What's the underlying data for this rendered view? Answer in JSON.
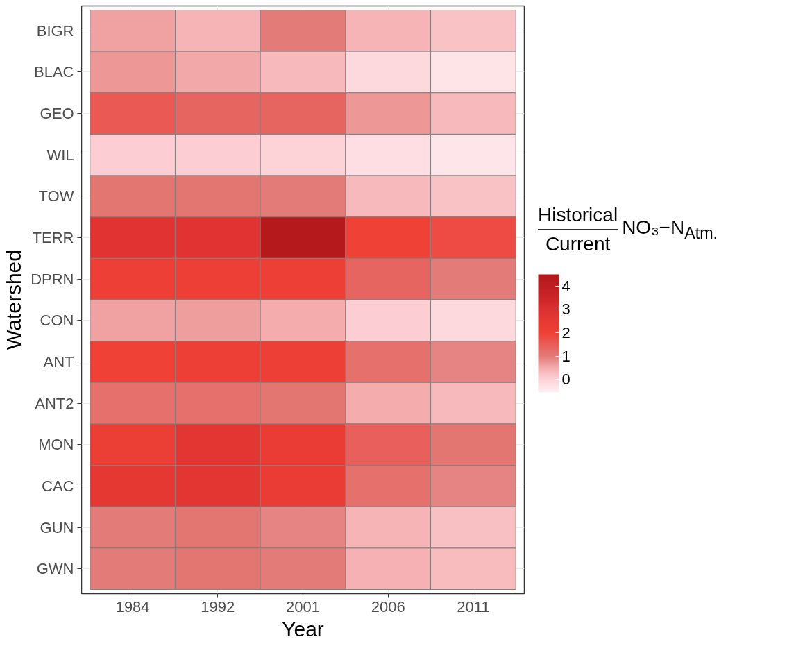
{
  "chart_data": {
    "type": "heatmap",
    "xlabel": "Year",
    "ylabel": "Watershed",
    "clabel": "Historical/Current NO₃−N$_{Atm.}$",
    "categories": [
      "1984",
      "1992",
      "2001",
      "2006",
      "2011"
    ],
    "y_categories": [
      "BIGR",
      "BLAC",
      "GEO",
      "WIL",
      "TOW",
      "TERR",
      "DPRN",
      "CON",
      "ANT",
      "ANT2",
      "MON",
      "CAC",
      "GUN",
      "GWN"
    ],
    "cells": [
      [
        0.6,
        0.4,
        1.0,
        0.4,
        0.2
      ],
      [
        0.7,
        0.55,
        0.35,
        -0.1,
        -0.3
      ],
      [
        1.6,
        1.4,
        1.4,
        0.7,
        0.35
      ],
      [
        0.05,
        0.05,
        0.0,
        -0.2,
        -0.35
      ],
      [
        1.1,
        1.1,
        1.0,
        0.35,
        0.2
      ],
      [
        2.8,
        2.8,
        4.4,
        2.0,
        1.8
      ],
      [
        2.1,
        2.1,
        2.1,
        1.4,
        1.0
      ],
      [
        0.6,
        0.65,
        0.5,
        0.05,
        -0.1
      ],
      [
        2.0,
        2.1,
        2.1,
        1.2,
        0.9
      ],
      [
        1.2,
        1.2,
        1.1,
        0.5,
        0.35
      ],
      [
        2.2,
        2.7,
        2.3,
        1.5,
        1.1
      ],
      [
        2.6,
        2.7,
        2.3,
        1.2,
        0.9
      ],
      [
        1.0,
        1.1,
        0.9,
        0.4,
        0.25
      ],
      [
        1.0,
        1.1,
        1.0,
        0.45,
        0.3
      ]
    ],
    "colors": [
      "#fff0f3",
      "#fdd5da",
      "#f5b0b1",
      "#e37d7a",
      "#e8605c",
      "#ef4136",
      "#e73a33",
      "#dd3131",
      "#cc2628",
      "#bf1f22",
      "#b2181b"
    ],
    "clim": [
      -0.55,
      4.5
    ],
    "cticks": [
      0,
      1,
      2,
      3,
      4
    ],
    "grid": true
  }
}
